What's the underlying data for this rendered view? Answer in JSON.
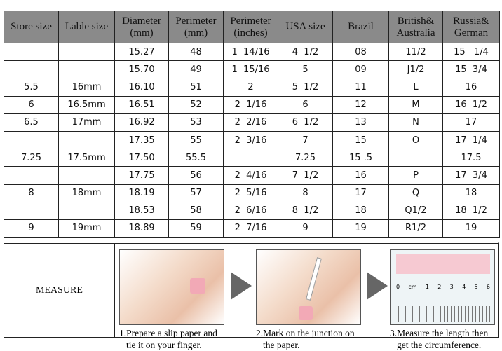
{
  "headers": [
    "Store size",
    "Lable size",
    "Diameter (mm)",
    "Perimeter (mm)",
    "Perimeter (inches)",
    "USA size",
    "Brazil",
    "British& Australia",
    "Russia& German"
  ],
  "rows": [
    [
      "",
      "",
      "15.27",
      "48",
      "1  14/16",
      "4  1/2",
      "08",
      "11/2",
      "15   1/4"
    ],
    [
      "",
      "",
      "15.70",
      "49",
      "1  15/16",
      "5",
      "09",
      "J1/2",
      "15  3/4"
    ],
    [
      "5.5",
      "16mm",
      "16.10",
      "51",
      "2",
      "5  1/2",
      "11",
      "L",
      "16"
    ],
    [
      "6",
      "16.5mm",
      "16.51",
      "52",
      "2  1/16",
      "6",
      "12",
      "M",
      "16  1/2"
    ],
    [
      "6.5",
      "17mm",
      "16.92",
      "53",
      "2  2/16",
      "6  1/2",
      "13",
      "N",
      "17"
    ],
    [
      "",
      "",
      "17.35",
      "55",
      "2  3/16",
      "7",
      "15",
      "O",
      "17  1/4"
    ],
    [
      "7.25",
      "17.5mm",
      "17.50",
      "55.5",
      "",
      "7.25",
      "15 .5",
      "",
      "17.5"
    ],
    [
      "",
      "",
      "17.75",
      "56",
      "2  4/16",
      "7  1/2",
      "16",
      "P",
      "17  3/4"
    ],
    [
      "8",
      "18mm",
      "18.19",
      "57",
      "2  5/16",
      "8",
      "17",
      "Q",
      "18"
    ],
    [
      "",
      "",
      "18.53",
      "58",
      "2  6/16",
      "8  1/2",
      "18",
      "Q1/2",
      "18  1/2"
    ],
    [
      "9",
      "19mm",
      "18.89",
      "59",
      "2  7/16",
      "9",
      "19",
      "R1/2",
      "19"
    ]
  ],
  "measure": {
    "label": "MEASURE",
    "steps": [
      {
        "line1": "1.Prepare a slip paper and",
        "line2": "tie it on your finger."
      },
      {
        "line1": "2.Mark on the junction on",
        "line2": "the paper."
      },
      {
        "line1": "3.Measure the length then",
        "line2": "get the circumference."
      }
    ],
    "ruler_labels": [
      "0",
      "cm",
      "1",
      "2",
      "3",
      "4",
      "5",
      "6"
    ]
  },
  "colors": {
    "header_bg": "#8a8a8a",
    "ring": "#f2a9b6"
  }
}
